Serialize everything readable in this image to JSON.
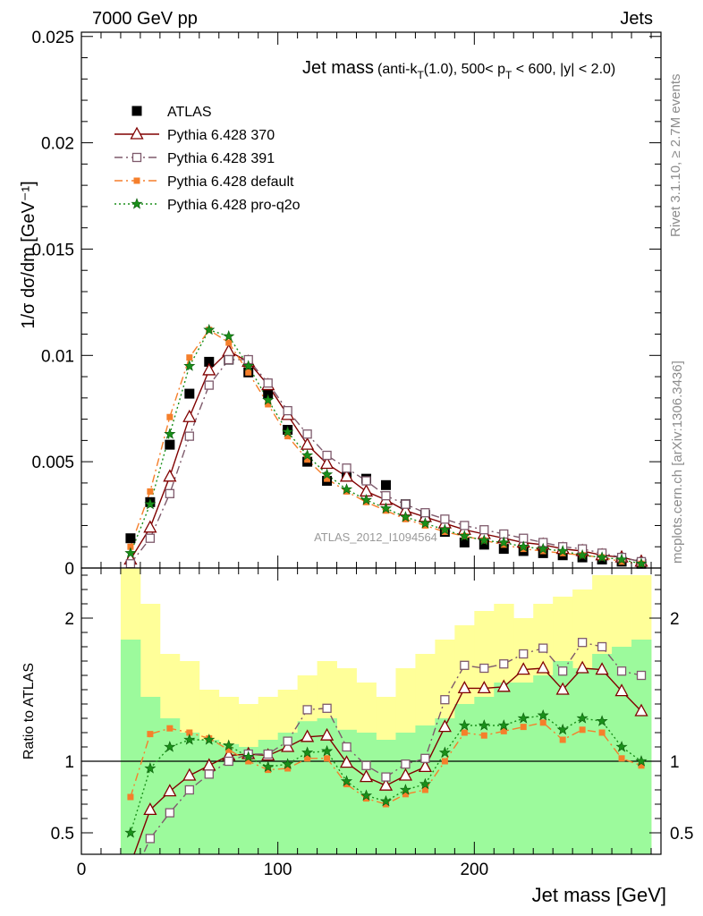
{
  "header": {
    "left": "7000 GeV pp",
    "right": "Jets"
  },
  "side_labels": {
    "top": "Rivet 3.1.10, ≥ 2.7M events",
    "bottom": "mcplots.cern.ch [arXiv:1306.3436]"
  },
  "watermark": "ATLAS_2012_I1094564",
  "chart_data": [
    {
      "type": "scatter",
      "panel": "main",
      "title_main": "Jet mass",
      "title_detail": "(anti-k_T(1.0), 500< p_T < 600, |y| < 2.0)",
      "ylabel": "1/σ dσ/dm [GeV⁻¹]",
      "xlabel": "",
      "xlim": [
        0,
        295
      ],
      "ylim": [
        0,
        0.0252
      ],
      "grid": false,
      "legend_position": "top-left",
      "x": [
        25,
        35,
        45,
        55,
        65,
        75,
        85,
        95,
        105,
        115,
        125,
        135,
        145,
        155,
        165,
        175,
        185,
        195,
        205,
        215,
        225,
        235,
        245,
        255,
        265,
        275,
        285
      ],
      "yticks": [
        0,
        0.005,
        0.01,
        0.015,
        0.02,
        0.025
      ],
      "ytick_labels": [
        "0",
        "0.005",
        "0.01",
        "0.015",
        "0.02",
        "0.025"
      ],
      "series": [
        {
          "name": "ATLAS",
          "color": "#000000",
          "marker": "filled-square",
          "line": "none",
          "values": [
            0.0014,
            0.0031,
            0.0058,
            0.0082,
            0.0097,
            0.0098,
            0.0092,
            0.0082,
            0.0065,
            0.005,
            0.0041,
            0.0043,
            0.0042,
            0.0039,
            0.003,
            0.0025,
            0.0017,
            0.0012,
            0.0011,
            0.0009,
            0.0008,
            0.0007,
            0.0006,
            0.0005,
            0.0004,
            0.0003,
            0.0002
          ]
        },
        {
          "name": "Pythia 6.428 370",
          "color": "#800000",
          "marker": "open-triangle",
          "line": "solid",
          "values": [
            0.0004,
            0.0019,
            0.0043,
            0.0071,
            0.0093,
            0.0102,
            0.0097,
            0.0086,
            0.0072,
            0.0058,
            0.0049,
            0.0043,
            0.0036,
            0.0032,
            0.0027,
            0.0024,
            0.0021,
            0.0018,
            0.0016,
            0.0014,
            0.0012,
            0.0011,
            0.0009,
            0.0008,
            0.0006,
            0.0005,
            0.0003
          ]
        },
        {
          "name": "Pythia 6.428 391",
          "color": "#7e5a6c",
          "marker": "open-square",
          "line": "dashdot",
          "values": [
            0.0002,
            0.0014,
            0.0035,
            0.0062,
            0.0086,
            0.0098,
            0.0098,
            0.0087,
            0.0074,
            0.0063,
            0.0053,
            0.0047,
            0.0041,
            0.0034,
            0.003,
            0.0026,
            0.0023,
            0.002,
            0.0018,
            0.0016,
            0.0014,
            0.0012,
            0.001,
            0.0009,
            0.0007,
            0.0005,
            0.0003
          ]
        },
        {
          "name": "Pythia 6.428 default",
          "color": "#f57f2b",
          "marker": "filled-square-small",
          "line": "dashdot",
          "values": [
            0.001,
            0.0036,
            0.0071,
            0.0099,
            0.0112,
            0.0106,
            0.0092,
            0.0077,
            0.0062,
            0.0051,
            0.0042,
            0.0036,
            0.0031,
            0.0027,
            0.0023,
            0.002,
            0.0017,
            0.0015,
            0.0013,
            0.0011,
            0.0009,
            0.0008,
            0.0007,
            0.0006,
            0.0005,
            0.0003,
            0.0002
          ]
        },
        {
          "name": "Pythia 6.428 pro-q2o",
          "color": "#1a8f1a",
          "marker": "star",
          "line": "dotted",
          "values": [
            0.0007,
            0.003,
            0.0063,
            0.0095,
            0.0112,
            0.0109,
            0.0095,
            0.0079,
            0.0064,
            0.0053,
            0.0044,
            0.0037,
            0.0032,
            0.0028,
            0.0024,
            0.0021,
            0.0018,
            0.0015,
            0.0013,
            0.0012,
            0.001,
            0.0009,
            0.0008,
            0.0006,
            0.0005,
            0.0004,
            0.0002
          ]
        }
      ]
    },
    {
      "type": "line",
      "panel": "ratio",
      "ylabel": "Ratio to ATLAS",
      "xlabel": "Jet mass [GeV]",
      "xlim": [
        0,
        295
      ],
      "ylim": [
        0.35,
        2.35
      ],
      "xticks": [
        0,
        100,
        200
      ],
      "xtick_labels": [
        "0",
        "100",
        "200"
      ],
      "yticks": [
        0.5,
        1,
        2
      ],
      "ytick_labels": [
        "0.5",
        "1",
        "2"
      ],
      "reference_line": 1,
      "bins": [
        [
          20,
          30
        ],
        [
          30,
          40
        ],
        [
          40,
          50
        ],
        [
          50,
          60
        ],
        [
          60,
          70
        ],
        [
          70,
          80
        ],
        [
          80,
          90
        ],
        [
          90,
          100
        ],
        [
          100,
          110
        ],
        [
          110,
          120
        ],
        [
          120,
          130
        ],
        [
          130,
          140
        ],
        [
          140,
          150
        ],
        [
          150,
          160
        ],
        [
          160,
          170
        ],
        [
          170,
          180
        ],
        [
          180,
          190
        ],
        [
          190,
          200
        ],
        [
          200,
          210
        ],
        [
          210,
          220
        ],
        [
          220,
          230
        ],
        [
          230,
          240
        ],
        [
          240,
          250
        ],
        [
          250,
          260
        ],
        [
          260,
          270
        ],
        [
          270,
          280
        ],
        [
          280,
          290
        ]
      ],
      "band_stat": {
        "color": "#9cfa9c",
        "low": [
          0.35,
          0.35,
          0.35,
          0.35,
          0.35,
          0.35,
          0.35,
          0.35,
          0.35,
          0.35,
          0.35,
          0.35,
          0.35,
          0.35,
          0.35,
          0.35,
          0.35,
          0.35,
          0.35,
          0.35,
          0.35,
          0.35,
          0.35,
          0.35,
          0.35,
          0.35,
          0.35
        ],
        "high": [
          1.85,
          1.45,
          1.3,
          1.2,
          1.15,
          1.12,
          1.1,
          1.15,
          1.2,
          1.28,
          1.3,
          1.22,
          1.2,
          1.15,
          1.2,
          1.25,
          1.3,
          1.4,
          1.45,
          1.55,
          1.55,
          1.6,
          1.7,
          1.65,
          1.75,
          1.8,
          1.85
        ]
      },
      "band_syst": {
        "color": "#ffff99",
        "low": [
          0.35,
          0.35,
          0.4,
          0.35,
          0.45,
          0.38,
          0.35,
          0.35,
          0.35,
          0.45,
          0.42,
          0.4,
          0.35,
          0.35,
          0.35,
          0.35,
          0.35,
          0.35,
          0.35,
          0.35,
          0.35,
          0.35,
          0.35,
          0.35,
          0.35,
          0.35,
          0.35
        ],
        "high": [
          2.35,
          2.1,
          1.75,
          1.7,
          1.5,
          1.45,
          1.4,
          1.45,
          1.5,
          1.6,
          1.7,
          1.65,
          1.55,
          1.45,
          1.65,
          1.75,
          1.85,
          1.95,
          2.05,
          2.1,
          2.0,
          2.1,
          2.15,
          2.2,
          2.3,
          2.3,
          2.3
        ]
      },
      "x": [
        25,
        35,
        45,
        55,
        65,
        75,
        85,
        95,
        105,
        115,
        125,
        135,
        145,
        155,
        165,
        175,
        185,
        195,
        205,
        215,
        225,
        235,
        245,
        255,
        265,
        275,
        285
      ],
      "series": [
        {
          "name": "Pythia 6.428 370",
          "color": "#800000",
          "marker": "open-triangle",
          "line": "solid",
          "values": [
            0.28,
            0.66,
            0.79,
            0.9,
            0.97,
            1.04,
            1.05,
            1.04,
            1.1,
            1.17,
            1.18,
            0.99,
            0.89,
            0.83,
            0.9,
            0.96,
            1.24,
            1.51,
            1.51,
            1.52,
            1.64,
            1.65,
            1.5,
            1.65,
            1.64,
            1.49,
            1.35
          ]
        },
        {
          "name": "Pythia 6.428 391",
          "color": "#7e5a6c",
          "marker": "open-square",
          "line": "dashdot",
          "values": [
            0.15,
            0.46,
            0.64,
            0.8,
            0.91,
            1.0,
            1.05,
            1.05,
            1.14,
            1.36,
            1.37,
            1.1,
            0.97,
            0.89,
            0.98,
            1.02,
            1.43,
            1.67,
            1.65,
            1.68,
            1.75,
            1.79,
            1.63,
            1.83,
            1.8,
            1.63,
            1.6
          ]
        },
        {
          "name": "Pythia 6.428 default",
          "color": "#f57f2b",
          "marker": "filled-square-small",
          "line": "dashdot",
          "values": [
            0.75,
            1.19,
            1.23,
            1.2,
            1.16,
            1.08,
            1.0,
            0.94,
            0.95,
            1.02,
            1.02,
            0.84,
            0.74,
            0.7,
            0.77,
            0.8,
            1.0,
            1.2,
            1.18,
            1.21,
            1.24,
            1.27,
            1.15,
            1.22,
            1.2,
            1.02,
            0.97
          ]
        },
        {
          "name": "Pythia 6.428 pro-q2o",
          "color": "#1a8f1a",
          "marker": "star",
          "line": "dotted",
          "values": [
            0.5,
            0.95,
            1.1,
            1.15,
            1.15,
            1.11,
            1.03,
            0.96,
            0.98,
            1.06,
            1.07,
            0.86,
            0.76,
            0.72,
            0.8,
            0.84,
            1.06,
            1.25,
            1.25,
            1.25,
            1.3,
            1.32,
            1.22,
            1.3,
            1.28,
            1.1,
            1.0
          ]
        }
      ]
    }
  ]
}
